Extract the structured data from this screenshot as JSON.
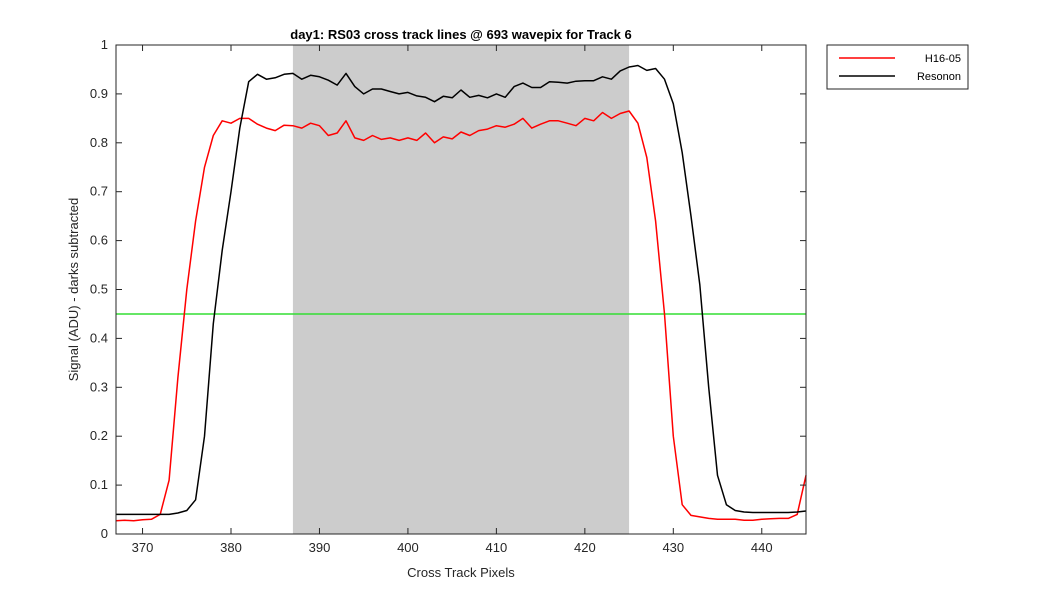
{
  "chart_data": {
    "type": "line",
    "title": "day1: RS03  cross track lines @ 693 wavepix for Track 6",
    "xlabel": "Cross Track Pixels",
    "ylabel": "Signal (ADU) - darks subtracted",
    "xlim": [
      367,
      445
    ],
    "ylim": [
      0,
      1
    ],
    "xticks": [
      370,
      380,
      390,
      400,
      410,
      420,
      430,
      440
    ],
    "yticks": [
      0,
      0.1,
      0.2,
      0.3,
      0.4,
      0.5,
      0.6,
      0.7,
      0.8,
      0.9,
      1
    ],
    "ytick_labels": [
      "0",
      "0.1",
      "0.2",
      "0.3",
      "0.4",
      "0.5",
      "0.6",
      "0.7",
      "0.8",
      "0.9",
      "1"
    ],
    "grid": false,
    "legend_position": "outside-top-right",
    "shaded_region": {
      "x": [
        387,
        425
      ],
      "color": "#cccccc"
    },
    "threshold": {
      "y": 0.45,
      "color": "#33dd33"
    },
    "series": [
      {
        "name": "H16-05",
        "color": "#ff0000",
        "x": [
          367,
          368,
          369,
          370,
          371,
          372,
          373,
          374,
          375,
          376,
          377,
          378,
          379,
          380,
          381,
          382,
          383,
          384,
          385,
          386,
          387,
          388,
          389,
          390,
          391,
          392,
          393,
          394,
          395,
          396,
          397,
          398,
          399,
          400,
          401,
          402,
          403,
          404,
          405,
          406,
          407,
          408,
          409,
          410,
          411,
          412,
          413,
          414,
          415,
          416,
          417,
          418,
          419,
          420,
          421,
          422,
          423,
          424,
          425,
          426,
          427,
          428,
          429,
          430,
          431,
          432,
          433,
          434,
          435,
          436,
          437,
          438,
          439,
          440,
          441,
          442,
          443,
          444,
          445
        ],
        "y": [
          0.027,
          0.028,
          0.027,
          0.029,
          0.03,
          0.04,
          0.11,
          0.32,
          0.5,
          0.64,
          0.75,
          0.815,
          0.845,
          0.84,
          0.85,
          0.85,
          0.838,
          0.83,
          0.825,
          0.836,
          0.835,
          0.83,
          0.84,
          0.835,
          0.815,
          0.82,
          0.845,
          0.81,
          0.805,
          0.815,
          0.807,
          0.81,
          0.805,
          0.81,
          0.805,
          0.82,
          0.8,
          0.812,
          0.808,
          0.822,
          0.815,
          0.825,
          0.828,
          0.835,
          0.832,
          0.838,
          0.85,
          0.83,
          0.838,
          0.845,
          0.845,
          0.84,
          0.835,
          0.85,
          0.845,
          0.862,
          0.85,
          0.86,
          0.865,
          0.84,
          0.77,
          0.64,
          0.45,
          0.2,
          0.06,
          0.038,
          0.035,
          0.032,
          0.03,
          0.03,
          0.03,
          0.028,
          0.028,
          0.03,
          0.031,
          0.032,
          0.032,
          0.04,
          0.12
        ]
      },
      {
        "name": "Resonon",
        "color": "#000000",
        "x": [
          367,
          368,
          369,
          370,
          371,
          372,
          373,
          374,
          375,
          376,
          377,
          378,
          379,
          380,
          381,
          382,
          383,
          384,
          385,
          386,
          387,
          388,
          389,
          390,
          391,
          392,
          393,
          394,
          395,
          396,
          397,
          398,
          399,
          400,
          401,
          402,
          403,
          404,
          405,
          406,
          407,
          408,
          409,
          410,
          411,
          412,
          413,
          414,
          415,
          416,
          417,
          418,
          419,
          420,
          421,
          422,
          423,
          424,
          425,
          426,
          427,
          428,
          429,
          430,
          431,
          432,
          433,
          434,
          435,
          436,
          437,
          438,
          439,
          440,
          441,
          442,
          443,
          444,
          445
        ],
        "y": [
          0.04,
          0.04,
          0.04,
          0.04,
          0.04,
          0.04,
          0.04,
          0.043,
          0.048,
          0.07,
          0.2,
          0.43,
          0.58,
          0.7,
          0.83,
          0.925,
          0.94,
          0.93,
          0.933,
          0.94,
          0.942,
          0.93,
          0.938,
          0.935,
          0.928,
          0.918,
          0.942,
          0.915,
          0.9,
          0.91,
          0.91,
          0.905,
          0.9,
          0.903,
          0.896,
          0.893,
          0.884,
          0.895,
          0.892,
          0.908,
          0.893,
          0.897,
          0.892,
          0.9,
          0.893,
          0.915,
          0.922,
          0.913,
          0.913,
          0.925,
          0.924,
          0.922,
          0.926,
          0.927,
          0.927,
          0.935,
          0.93,
          0.947,
          0.955,
          0.958,
          0.948,
          0.952,
          0.93,
          0.88,
          0.78,
          0.65,
          0.51,
          0.3,
          0.12,
          0.06,
          0.048,
          0.045,
          0.044,
          0.044,
          0.044,
          0.044,
          0.044,
          0.045,
          0.047
        ]
      }
    ]
  }
}
